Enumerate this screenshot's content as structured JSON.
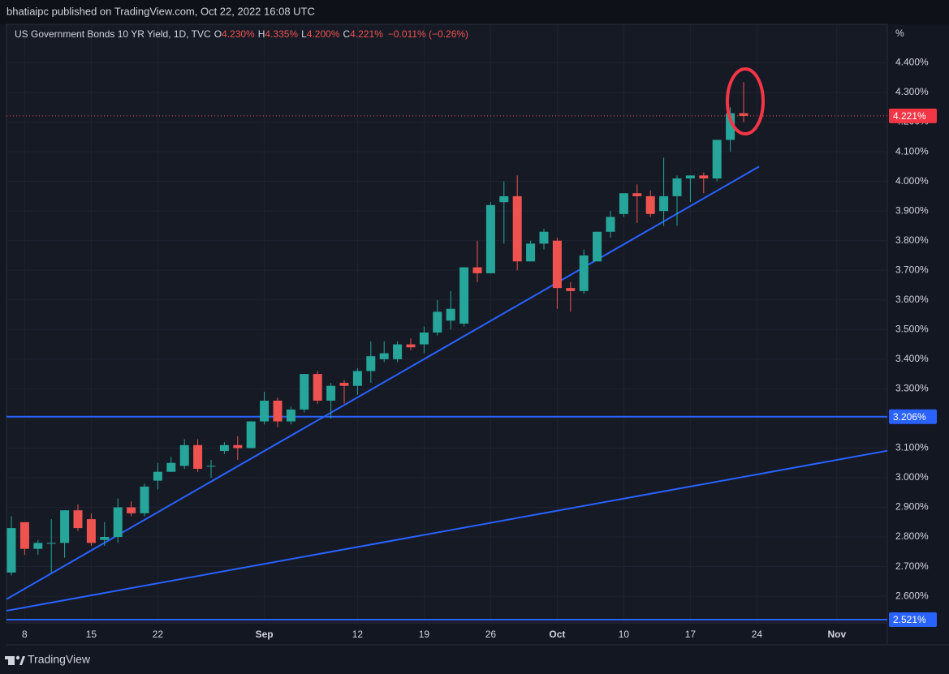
{
  "header": {
    "text": "bhatiaipc published on TradingView.com, Oct 22, 2022 16:08 UTC"
  },
  "footer": {
    "brand": "TradingView"
  },
  "chart_data": {
    "type": "candlestick",
    "title": "US Government Bonds 10 YR Yield, 1D, TVC",
    "legend": [
      {
        "key": "O",
        "label": "4.230%"
      },
      {
        "key": "H",
        "label": "4.335%"
      },
      {
        "key": "L",
        "label": "4.200%"
      },
      {
        "key": "C",
        "label": "4.221%"
      }
    ],
    "change_label": "−0.011% (−0.26%)",
    "unit_label": "%",
    "last_price_label": "4.221%",
    "categories": [
      null,
      "8",
      null,
      null,
      null,
      null,
      "15",
      null,
      null,
      null,
      null,
      "22",
      null,
      null,
      null,
      null,
      null,
      null,
      null,
      "Sep",
      null,
      null,
      null,
      null,
      null,
      null,
      "12",
      null,
      null,
      null,
      null,
      "19",
      null,
      null,
      null,
      null,
      "26",
      null,
      null,
      null,
      null,
      "Oct",
      null,
      null,
      null,
      null,
      "10",
      null,
      null,
      null,
      null,
      "17",
      null,
      null,
      null,
      null,
      "24",
      null,
      null,
      null,
      null,
      null,
      "Nov",
      null,
      null,
      null
    ],
    "open": [
      2.68,
      2.85,
      2.76,
      2.78,
      2.78,
      2.89,
      2.86,
      2.79,
      2.8,
      2.9,
      2.88,
      2.99,
      3.02,
      3.04,
      3.11,
      3.04,
      3.09,
      3.11,
      3.1,
      3.19,
      3.26,
      3.19,
      3.23,
      3.35,
      3.26,
      3.32,
      3.31,
      3.36,
      3.4,
      3.4,
      3.45,
      3.45,
      3.49,
      3.53,
      3.52,
      3.71,
      3.69,
      3.93,
      3.95,
      3.73,
      3.79,
      3.8,
      3.64,
      3.63,
      3.73,
      3.83,
      3.89,
      3.96,
      3.95,
      3.9,
      3.95,
      4.01,
      4.02,
      4.01,
      4.14,
      4.23,
      null,
      null,
      null,
      null,
      null,
      null,
      null,
      null,
      null,
      null
    ],
    "high": [
      2.87,
      2.85,
      2.79,
      2.86,
      2.89,
      2.91,
      2.88,
      2.85,
      2.93,
      2.92,
      2.98,
      3.05,
      3.07,
      3.13,
      3.13,
      3.06,
      3.12,
      3.14,
      3.19,
      3.29,
      3.27,
      3.24,
      3.35,
      3.36,
      3.32,
      3.33,
      3.37,
      3.46,
      3.46,
      3.46,
      3.47,
      3.51,
      3.6,
      3.63,
      3.71,
      3.8,
      3.93,
      4.0,
      4.02,
      3.8,
      3.84,
      3.81,
      3.66,
      3.77,
      3.83,
      3.9,
      3.96,
      3.99,
      3.97,
      4.08,
      4.02,
      4.02,
      4.03,
      4.14,
      4.25,
      4.335,
      null,
      null,
      null,
      null,
      null,
      null,
      null,
      null,
      null,
      null
    ],
    "low": [
      2.67,
      2.74,
      2.74,
      2.68,
      2.73,
      2.82,
      2.77,
      2.77,
      2.78,
      2.87,
      2.87,
      2.96,
      3.02,
      3.03,
      3.02,
      3.0,
      3.08,
      3.06,
      3.1,
      3.18,
      3.17,
      3.18,
      3.22,
      3.25,
      3.2,
      3.25,
      3.28,
      3.32,
      3.39,
      3.39,
      3.43,
      3.42,
      3.48,
      3.5,
      3.51,
      3.66,
      3.69,
      3.79,
      3.7,
      3.73,
      3.77,
      3.57,
      3.56,
      3.62,
      3.73,
      3.81,
      3.88,
      3.86,
      3.88,
      3.85,
      3.85,
      3.93,
      3.96,
      4.0,
      4.1,
      4.2,
      null,
      null,
      null,
      null,
      null,
      null,
      null,
      null,
      null,
      null
    ],
    "close": [
      2.83,
      2.76,
      2.78,
      2.78,
      2.89,
      2.83,
      2.78,
      2.8,
      2.9,
      2.88,
      2.97,
      3.02,
      3.05,
      3.11,
      3.03,
      3.04,
      3.11,
      3.1,
      3.19,
      3.26,
      3.19,
      3.23,
      3.35,
      3.26,
      3.31,
      3.31,
      3.36,
      3.41,
      3.42,
      3.45,
      3.44,
      3.49,
      3.56,
      3.57,
      3.71,
      3.69,
      3.92,
      3.95,
      3.73,
      3.79,
      3.83,
      3.64,
      3.63,
      3.75,
      3.83,
      3.88,
      3.96,
      3.95,
      3.89,
      3.95,
      4.01,
      4.02,
      4.01,
      4.14,
      4.23,
      4.221,
      null,
      null,
      null,
      null,
      null,
      null,
      null,
      null,
      null,
      null
    ],
    "up_color": "#26a69a",
    "down_color": "#ef5350",
    "ylim": [
      2.51,
      4.53
    ],
    "yticks": [
      {
        "value": 2.6,
        "label": "2.600%"
      },
      {
        "value": 2.7,
        "label": "2.700%"
      },
      {
        "value": 2.8,
        "label": "2.800%"
      },
      {
        "value": 2.9,
        "label": "2.900%"
      },
      {
        "value": 3.0,
        "label": "3.000%"
      },
      {
        "value": 3.1,
        "label": "3.100%"
      },
      {
        "value": 3.2,
        "label": "3.200%"
      },
      {
        "value": 3.3,
        "label": "3.300%"
      },
      {
        "value": 3.4,
        "label": "3.400%"
      },
      {
        "value": 3.5,
        "label": "3.500%"
      },
      {
        "value": 3.6,
        "label": "3.600%"
      },
      {
        "value": 3.7,
        "label": "3.700%"
      },
      {
        "value": 3.8,
        "label": "3.800%"
      },
      {
        "value": 3.9,
        "label": "3.900%"
      },
      {
        "value": 4.0,
        "label": "4.000%"
      },
      {
        "value": 4.1,
        "label": "4.100%"
      },
      {
        "value": 4.2,
        "label": "4.200%"
      },
      {
        "value": 4.3,
        "label": "4.300%"
      },
      {
        "value": 4.4,
        "label": "4.400%"
      }
    ],
    "grid": true,
    "hlines": [
      {
        "value": 3.206,
        "label": "3.206%",
        "color": "#2962ff"
      },
      {
        "value": 2.521,
        "label": "2.521%",
        "color": "#2962ff"
      }
    ],
    "trendlines": [
      {
        "x": [
          -0.37,
          56.16
        ],
        "y": [
          2.59,
          4.05
        ],
        "color": "#2962ff"
      },
      {
        "x": [
          -0.37,
          65.8
        ],
        "y": [
          2.551,
          3.091
        ],
        "color": "#2962ff"
      }
    ]
  }
}
